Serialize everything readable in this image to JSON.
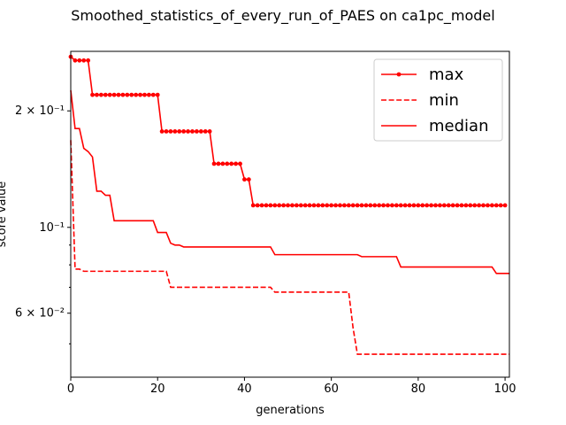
{
  "chart_data": {
    "type": "line",
    "title": "Smoothed_statistics_of_every_run_of_PAES on ca1pc_model",
    "xlabel": "generations",
    "ylabel": "score value",
    "xlim": [
      0,
      101
    ],
    "ylim": [
      0.041,
      0.285
    ],
    "y_scale": "log",
    "x_ticks": [
      0,
      20,
      40,
      60,
      80,
      100
    ],
    "y_ticks": [
      {
        "value": 0.2,
        "label": "2 × 10⁻¹"
      },
      {
        "value": 0.1,
        "label": "10⁻¹"
      },
      {
        "value": 0.06,
        "label": "6 × 10⁻²"
      }
    ],
    "legend": {
      "location": "upper right"
    },
    "series": [
      {
        "name": "max",
        "color": "#ff0000",
        "linestyle": "solid",
        "marker": "circle",
        "values": [
          0.276,
          0.27,
          0.27,
          0.27,
          0.27,
          0.22,
          0.22,
          0.22,
          0.22,
          0.22,
          0.22,
          0.22,
          0.22,
          0.22,
          0.22,
          0.22,
          0.22,
          0.22,
          0.22,
          0.22,
          0.22,
          0.177,
          0.177,
          0.177,
          0.177,
          0.177,
          0.177,
          0.177,
          0.177,
          0.177,
          0.177,
          0.177,
          0.177,
          0.146,
          0.146,
          0.146,
          0.146,
          0.146,
          0.146,
          0.146,
          0.133,
          0.133,
          0.114,
          0.114,
          0.114,
          0.114,
          0.114,
          0.114,
          0.114,
          0.114,
          0.114,
          0.114,
          0.114,
          0.114,
          0.114,
          0.114,
          0.114,
          0.114,
          0.114,
          0.114,
          0.114,
          0.114,
          0.114,
          0.114,
          0.114,
          0.114,
          0.114,
          0.114,
          0.114,
          0.114,
          0.114,
          0.114,
          0.114,
          0.114,
          0.114,
          0.114,
          0.114,
          0.114,
          0.114,
          0.114,
          0.114,
          0.114,
          0.114,
          0.114,
          0.114,
          0.114,
          0.114,
          0.114,
          0.114,
          0.114,
          0.114,
          0.114,
          0.114,
          0.114,
          0.114,
          0.114,
          0.114,
          0.114,
          0.114,
          0.114,
          0.114
        ]
      },
      {
        "name": "min",
        "color": "#ff0000",
        "linestyle": "dashed",
        "marker": "none",
        "values": [
          0.168,
          0.078,
          0.078,
          0.077,
          0.077,
          0.077,
          0.077,
          0.077,
          0.077,
          0.077,
          0.077,
          0.077,
          0.077,
          0.077,
          0.077,
          0.077,
          0.077,
          0.077,
          0.077,
          0.077,
          0.077,
          0.077,
          0.077,
          0.07,
          0.07,
          0.07,
          0.07,
          0.07,
          0.07,
          0.07,
          0.07,
          0.07,
          0.07,
          0.07,
          0.07,
          0.07,
          0.07,
          0.07,
          0.07,
          0.07,
          0.07,
          0.07,
          0.07,
          0.07,
          0.07,
          0.07,
          0.07,
          0.068,
          0.068,
          0.068,
          0.068,
          0.068,
          0.068,
          0.068,
          0.068,
          0.068,
          0.068,
          0.068,
          0.068,
          0.068,
          0.068,
          0.068,
          0.068,
          0.068,
          0.068,
          0.055,
          0.047,
          0.047,
          0.047,
          0.047,
          0.047,
          0.047,
          0.047,
          0.047,
          0.047,
          0.047,
          0.047,
          0.047,
          0.047,
          0.047,
          0.047,
          0.047,
          0.047,
          0.047,
          0.047,
          0.047,
          0.047,
          0.047,
          0.047,
          0.047,
          0.047,
          0.047,
          0.047,
          0.047,
          0.047,
          0.047,
          0.047,
          0.047,
          0.047,
          0.047,
          0.047,
          0.047
        ]
      },
      {
        "name": "median",
        "color": "#ff0000",
        "linestyle": "solid",
        "marker": "none",
        "values": [
          0.226,
          0.18,
          0.18,
          0.16,
          0.157,
          0.152,
          0.124,
          0.124,
          0.121,
          0.121,
          0.104,
          0.104,
          0.104,
          0.104,
          0.104,
          0.104,
          0.104,
          0.104,
          0.104,
          0.104,
          0.097,
          0.097,
          0.097,
          0.091,
          0.09,
          0.09,
          0.089,
          0.089,
          0.089,
          0.089,
          0.089,
          0.089,
          0.089,
          0.089,
          0.089,
          0.089,
          0.089,
          0.089,
          0.089,
          0.089,
          0.089,
          0.089,
          0.089,
          0.089,
          0.089,
          0.089,
          0.089,
          0.085,
          0.085,
          0.085,
          0.085,
          0.085,
          0.085,
          0.085,
          0.085,
          0.085,
          0.085,
          0.085,
          0.085,
          0.085,
          0.085,
          0.085,
          0.085,
          0.085,
          0.085,
          0.085,
          0.085,
          0.084,
          0.084,
          0.084,
          0.084,
          0.084,
          0.084,
          0.084,
          0.084,
          0.084,
          0.079,
          0.079,
          0.079,
          0.079,
          0.079,
          0.079,
          0.079,
          0.079,
          0.079,
          0.079,
          0.079,
          0.079,
          0.079,
          0.079,
          0.079,
          0.079,
          0.079,
          0.079,
          0.079,
          0.079,
          0.079,
          0.079,
          0.076,
          0.076,
          0.076,
          0.076
        ]
      }
    ]
  }
}
